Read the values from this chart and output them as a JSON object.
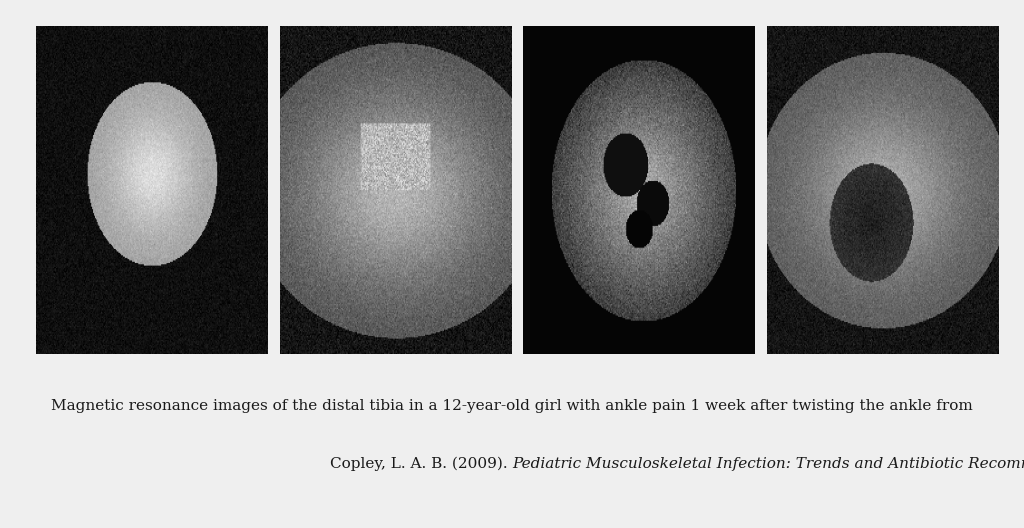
{
  "figure_background": "#efefef",
  "n_images": 4,
  "caption_line1": "Magnetic resonance images of the distal tibia in a 12-year-old girl with ankle pain 1 week after twisting the ankle from",
  "caption_line2_normal": "Copley, L. A. B. (2009). ",
  "caption_line2_italic": "Pediatric Musculoskeletal Infection: Trends and Antibiotic Recommendations",
  "caption_line2_end": ".",
  "caption_fontsize": 11.0,
  "fig_width": 10.24,
  "fig_height": 5.28
}
